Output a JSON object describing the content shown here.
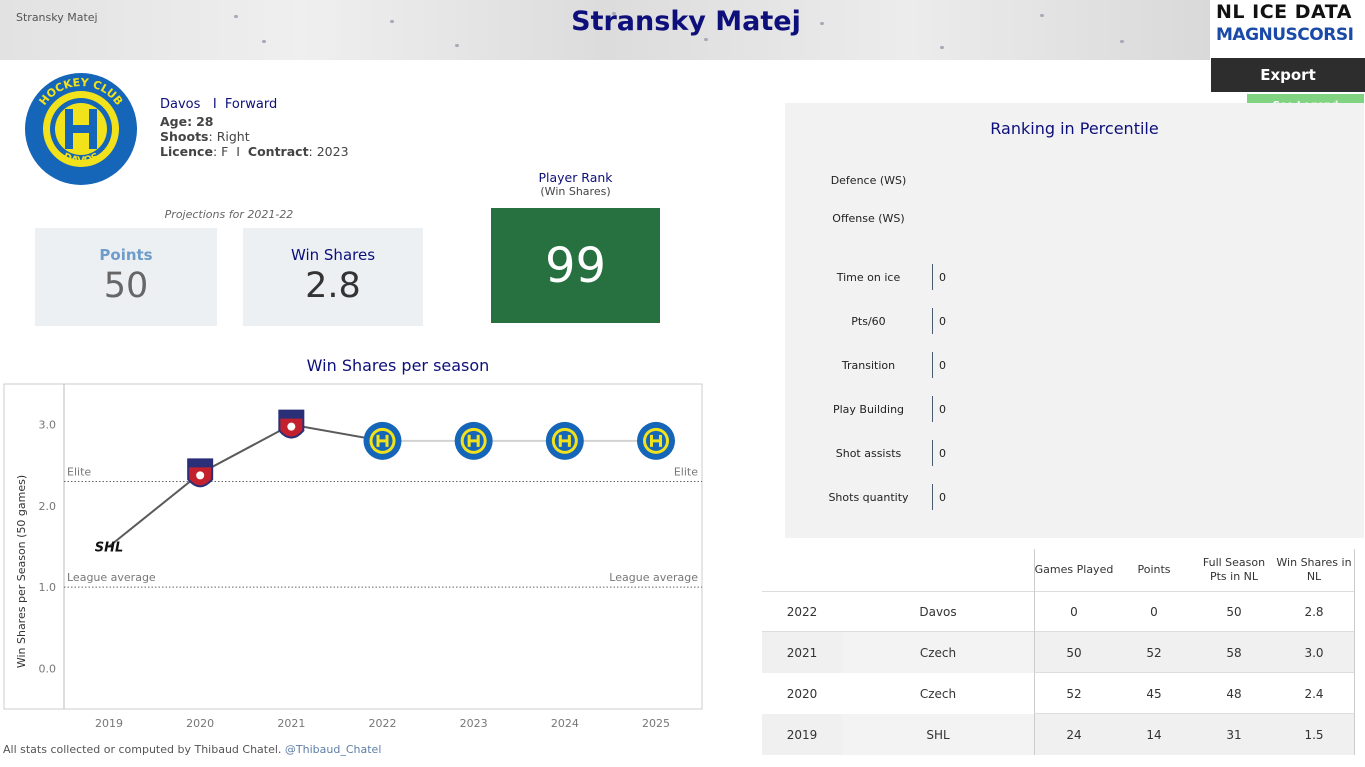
{
  "header": {
    "small_name": "Stransky Matej",
    "title": "Stransky Matej",
    "logo_line1": "NL ICE DATA",
    "logo_line2": "MAGNUSCORSI",
    "export_label": "Export",
    "legend_label": "See Legend"
  },
  "player": {
    "team": "Davos",
    "separator": "I",
    "position": "Forward",
    "age_label": "Age:",
    "age": "28",
    "shoots_label": "Shoots",
    "shoots": "Right",
    "licence_label": "Licence",
    "licence": "F",
    "contract_label": "Contract",
    "contract": "2023",
    "team_logo_text_top": "HOCKEY CLUB",
    "team_logo_text_bottom": "DAVOS"
  },
  "projections": {
    "caption": "Projections for 2021-22",
    "points_label": "Points",
    "points_value": "50",
    "ws_label": "Win Shares",
    "ws_value": "2.8"
  },
  "rank": {
    "title": "Player Rank",
    "subtitle": "(Win Shares)",
    "value": "99",
    "color": "#27703f"
  },
  "chart_data": {
    "type": "line",
    "title": "Win Shares per season",
    "ylabel": "Win Shares per Season (50 games)",
    "xlabel": "",
    "x": [
      "2019",
      "2020",
      "2021",
      "2022",
      "2023",
      "2024",
      "2025"
    ],
    "series": [
      {
        "values": [
          1.5,
          2.4,
          3.0,
          2.8,
          2.8,
          2.8,
          2.8
        ]
      }
    ],
    "markers": [
      "SHL",
      "TIPOS",
      "TIPOS",
      "DAVOS",
      "DAVOS",
      "DAVOS",
      "DAVOS"
    ],
    "ylim": [
      -0.5,
      3.5
    ],
    "yticks": [
      "0.0",
      "1.0",
      "2.0",
      "3.0"
    ],
    "reference_lines": [
      {
        "label": "Elite",
        "value": 2.3
      },
      {
        "label": "League average",
        "value": 1.0
      }
    ],
    "grid": false
  },
  "footer": {
    "text": "All stats collected or computed by Thibaud Chatel.",
    "handle": "@Thibaud_Chatel"
  },
  "percentile": {
    "title": "Ranking in Percentile",
    "ws_rows": [
      {
        "label": "Defence (WS)"
      },
      {
        "label": "Offense (WS)"
      }
    ],
    "rows": [
      {
        "label": "Time on ice",
        "value": "0"
      },
      {
        "label": "Pts/60",
        "value": "0"
      },
      {
        "label": "Transition",
        "value": "0"
      },
      {
        "label": "Play Building",
        "value": "0"
      },
      {
        "label": "Shot assists",
        "value": "0"
      },
      {
        "label": "Shots quantity",
        "value": "0"
      }
    ]
  },
  "stats_table": {
    "headers": [
      "Games Played",
      "Points",
      "Full Season Pts in NL",
      "Win Shares in NL"
    ],
    "rows": [
      {
        "season": "2022",
        "league": "Davos",
        "gp": "0",
        "pts": "0",
        "full_pts": "50",
        "ws": "2.8"
      },
      {
        "season": "2021",
        "league": "Czech",
        "gp": "50",
        "pts": "52",
        "full_pts": "58",
        "ws": "3.0"
      },
      {
        "season": "2020",
        "league": "Czech",
        "gp": "52",
        "pts": "45",
        "full_pts": "48",
        "ws": "2.4"
      },
      {
        "season": "2019",
        "league": "SHL",
        "gp": "24",
        "pts": "14",
        "full_pts": "31",
        "ws": "1.5"
      }
    ]
  }
}
